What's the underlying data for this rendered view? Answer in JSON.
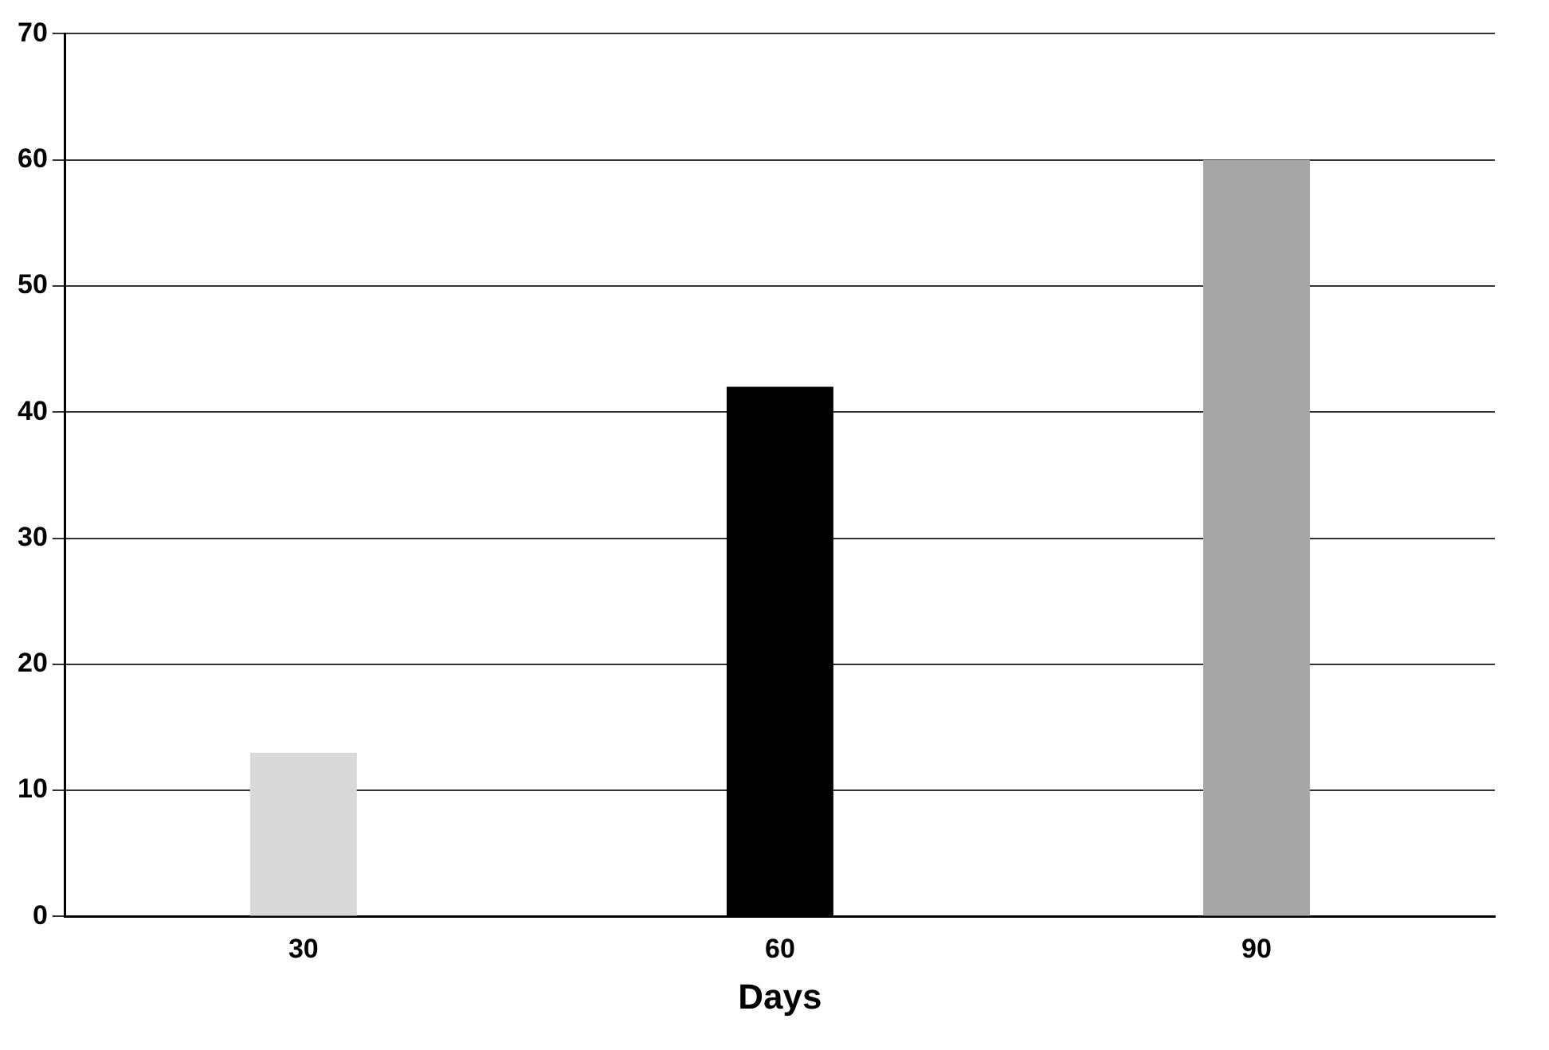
{
  "chart_data": {
    "type": "bar",
    "xlabel": "Days",
    "categories": [
      "30",
      "60",
      "90"
    ],
    "values": [
      13,
      42,
      60
    ],
    "colors": [
      "#d9d9d9",
      "#000000",
      "#a6a6a6"
    ],
    "ylim": [
      0,
      70
    ],
    "yticks": [
      0,
      10,
      20,
      30,
      40,
      50,
      60,
      70
    ],
    "grid": "y",
    "legend": false
  }
}
